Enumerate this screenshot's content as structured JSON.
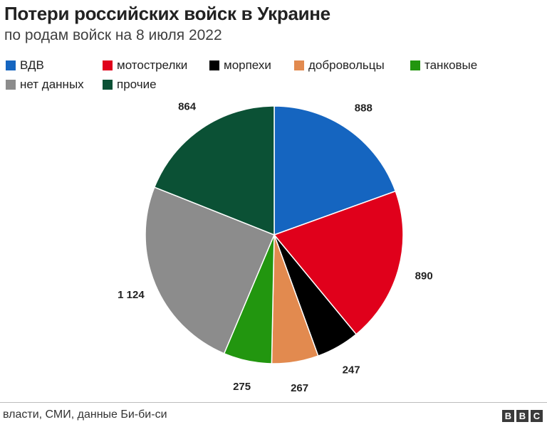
{
  "title": "Потери российских войск в Украине",
  "subtitle": "по родам войск на 8 июля 2022",
  "chart_data": {
    "type": "pie",
    "title": "Потери российских войск в Украине",
    "subtitle": "по родам войск на 8 июля 2022",
    "slices": [
      {
        "label": "ВДВ",
        "value": 888,
        "value_label": "888",
        "color": "#1565c0"
      },
      {
        "label": "мотострелки",
        "value": 890,
        "value_label": "890",
        "color": "#e0001b"
      },
      {
        "label": "морпехи",
        "value": 247,
        "value_label": "247",
        "color": "#000000"
      },
      {
        "label": "добровольцы",
        "value": 267,
        "value_label": "267",
        "color": "#e28a4f"
      },
      {
        "label": "танковые",
        "value": 275,
        "value_label": "275",
        "color": "#22960f"
      },
      {
        "label": "нет данных",
        "value": 1124,
        "value_label": "1 124",
        "color": "#8c8c8c"
      },
      {
        "label": "прочие",
        "value": 864,
        "value_label": "864",
        "color": "#0b5135"
      }
    ],
    "legend_placement": "top",
    "start_angle": "12 o'clock",
    "direction": "clockwise"
  },
  "source": "власти, СМИ, данные Би-би-си",
  "logo": {
    "letters": [
      "B",
      "B",
      "C"
    ]
  }
}
